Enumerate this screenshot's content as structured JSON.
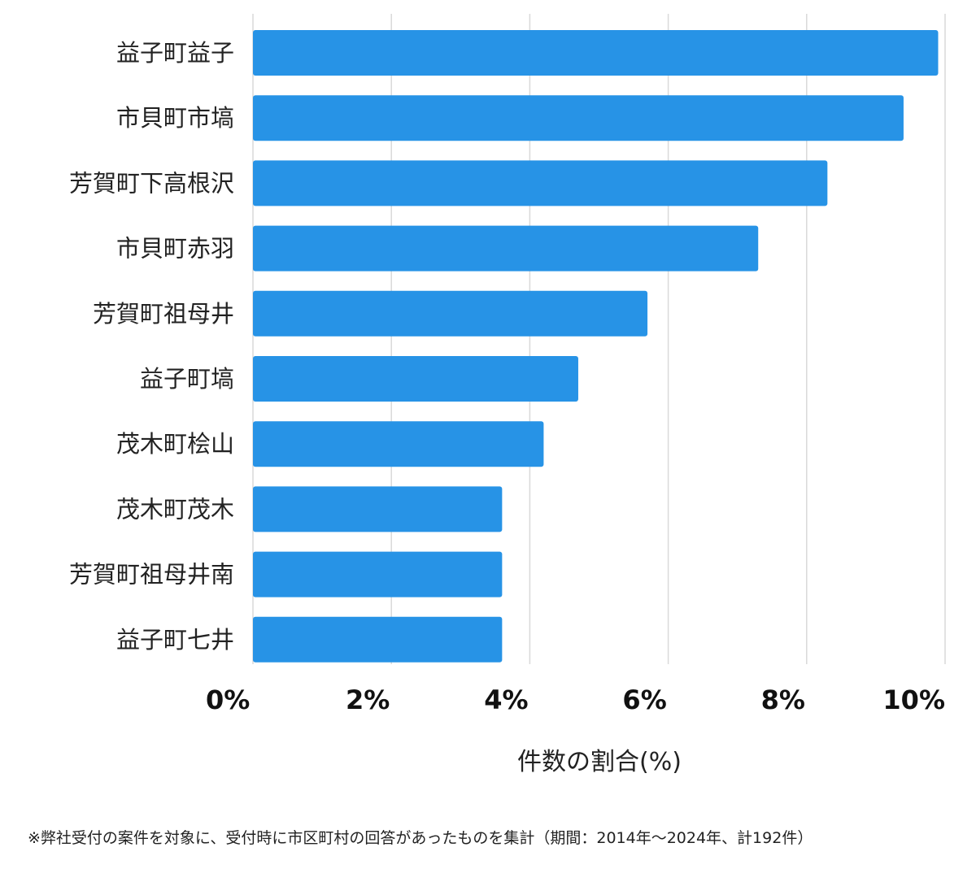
{
  "chart_data": {
    "type": "bar",
    "orientation": "horizontal",
    "categories": [
      "益子町益子",
      "市貝町市塙",
      "芳賀町下高根沢",
      "市貝町赤羽",
      "芳賀町祖母井",
      "益子町塙",
      "茂木町桧山",
      "茂木町茂木",
      "芳賀町祖母井南",
      "益子町七井"
    ],
    "values": [
      9.9,
      9.4,
      8.3,
      7.3,
      5.7,
      4.7,
      4.2,
      3.6,
      3.6,
      3.6
    ],
    "xlim": [
      0,
      10
    ],
    "xticks": [
      0,
      2,
      4,
      6,
      8,
      10
    ],
    "xtick_labels": [
      "0%",
      "2%",
      "4%",
      "6%",
      "8%",
      "10%"
    ],
    "xlabel": "件数の割合(%)",
    "ylabel": "",
    "title": "",
    "grid": true,
    "colors": {
      "bar": "#2793e6",
      "grid": "#d9d9d9"
    }
  },
  "footnote": "※弊社受付の案件を対象に、受付時に市区町村の回答があったものを集計（期間：2014年〜2024年、計192件）"
}
